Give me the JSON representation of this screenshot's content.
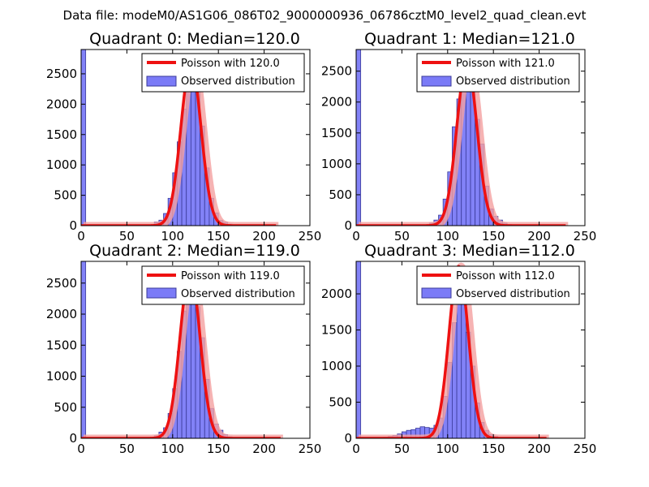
{
  "figure_title": "Data file: modeM0/AS1G06_086T02_9000000936_06786cztM0_level2_quad_clean.evt",
  "colors": {
    "histogram_fill": "#7b7bf7",
    "histogram_edge": "#3b3b9a",
    "poisson_line": "#ee1111",
    "poisson_shadow": "#f4a0a0"
  },
  "legend_labels": {
    "observed": "Observed distribution"
  },
  "chart_data": [
    {
      "type": "bar+line",
      "title": "Quadrant 0: Median=120.0",
      "poisson_label": "Poisson with 120.0",
      "xlim": [
        0,
        250
      ],
      "ylim": [
        0,
        2900
      ],
      "xticks": [
        0,
        50,
        100,
        150,
        200,
        250
      ],
      "yticks": [
        0,
        500,
        1000,
        1500,
        2000,
        2500
      ],
      "bin_width": 5,
      "bins": [
        [
          0,
          2900
        ],
        [
          80,
          60
        ],
        [
          85,
          90
        ],
        [
          90,
          200
        ],
        [
          95,
          450
        ],
        [
          100,
          870
        ],
        [
          105,
          1380
        ],
        [
          110,
          1920
        ],
        [
          115,
          2620
        ],
        [
          120,
          2340
        ],
        [
          125,
          2330
        ],
        [
          130,
          1640
        ],
        [
          135,
          950
        ],
        [
          140,
          450
        ],
        [
          145,
          210
        ],
        [
          150,
          85
        ],
        [
          155,
          55
        ],
        [
          160,
          25
        ],
        [
          165,
          12
        ],
        [
          170,
          5
        ]
      ],
      "poisson": {
        "mean": 120.0,
        "peak": 2680,
        "x_range": [
          0,
          213
        ]
      }
    },
    {
      "type": "bar+line",
      "title": "Quadrant 1: Median=121.0",
      "poisson_label": "Poisson with 121.0",
      "xlim": [
        0,
        250
      ],
      "ylim": [
        0,
        2850
      ],
      "xticks": [
        0,
        50,
        100,
        150,
        200,
        250
      ],
      "yticks": [
        0,
        500,
        1000,
        1500,
        2000,
        2500
      ],
      "bin_width": 5,
      "bins": [
        [
          0,
          2850
        ],
        [
          80,
          40
        ],
        [
          85,
          90
        ],
        [
          90,
          170
        ],
        [
          95,
          430
        ],
        [
          100,
          870
        ],
        [
          105,
          1600
        ],
        [
          110,
          2050
        ],
        [
          115,
          2330
        ],
        [
          120,
          2450
        ],
        [
          125,
          2240
        ],
        [
          130,
          1720
        ],
        [
          135,
          1320
        ],
        [
          140,
          640
        ],
        [
          145,
          270
        ],
        [
          150,
          150
        ],
        [
          155,
          90
        ],
        [
          160,
          40
        ],
        [
          165,
          20
        ],
        [
          170,
          8
        ]
      ],
      "poisson": {
        "mean": 121.0,
        "peak": 2640,
        "x_range": [
          0,
          229
        ]
      }
    },
    {
      "type": "bar+line",
      "title": "Quadrant 2: Median=119.0",
      "poisson_label": "Poisson with 119.0",
      "xlim": [
        0,
        250
      ],
      "ylim": [
        0,
        2850
      ],
      "xticks": [
        0,
        50,
        100,
        150,
        200,
        250
      ],
      "yticks": [
        0,
        500,
        1000,
        1500,
        2000,
        2500
      ],
      "bin_width": 5,
      "bins": [
        [
          0,
          2850
        ],
        [
          80,
          40
        ],
        [
          85,
          100
        ],
        [
          90,
          170
        ],
        [
          95,
          400
        ],
        [
          100,
          800
        ],
        [
          105,
          1400
        ],
        [
          110,
          2050
        ],
        [
          115,
          2500
        ],
        [
          120,
          2370
        ],
        [
          125,
          2120
        ],
        [
          130,
          1620
        ],
        [
          135,
          950
        ],
        [
          140,
          480
        ],
        [
          145,
          230
        ],
        [
          150,
          130
        ],
        [
          155,
          60
        ],
        [
          160,
          25
        ],
        [
          165,
          10
        ]
      ],
      "poisson": {
        "mean": 119.0,
        "peak": 2700,
        "x_range": [
          0,
          218
        ]
      }
    },
    {
      "type": "bar+line",
      "title": "Quadrant 3: Median=112.0",
      "poisson_label": "Poisson with 112.0",
      "xlim": [
        0,
        250
      ],
      "ylim": [
        0,
        2450
      ],
      "xticks": [
        0,
        50,
        100,
        150,
        200,
        250
      ],
      "yticks": [
        0,
        500,
        1000,
        1500,
        2000
      ],
      "bin_width": 5,
      "bins": [
        [
          0,
          2450
        ],
        [
          30,
          15
        ],
        [
          35,
          25
        ],
        [
          40,
          40
        ],
        [
          45,
          60
        ],
        [
          50,
          90
        ],
        [
          55,
          110
        ],
        [
          60,
          120
        ],
        [
          65,
          140
        ],
        [
          70,
          160
        ],
        [
          75,
          150
        ],
        [
          80,
          140
        ],
        [
          85,
          180
        ],
        [
          90,
          280
        ],
        [
          95,
          580
        ],
        [
          100,
          1050
        ],
        [
          105,
          1600
        ],
        [
          110,
          2300
        ],
        [
          115,
          2080
        ],
        [
          120,
          1470
        ],
        [
          125,
          1000
        ],
        [
          130,
          490
        ],
        [
          135,
          220
        ],
        [
          140,
          110
        ],
        [
          145,
          50
        ],
        [
          150,
          25
        ],
        [
          155,
          10
        ]
      ],
      "poisson": {
        "mean": 112.0,
        "peak": 2380,
        "x_range": [
          0,
          208
        ]
      }
    }
  ]
}
